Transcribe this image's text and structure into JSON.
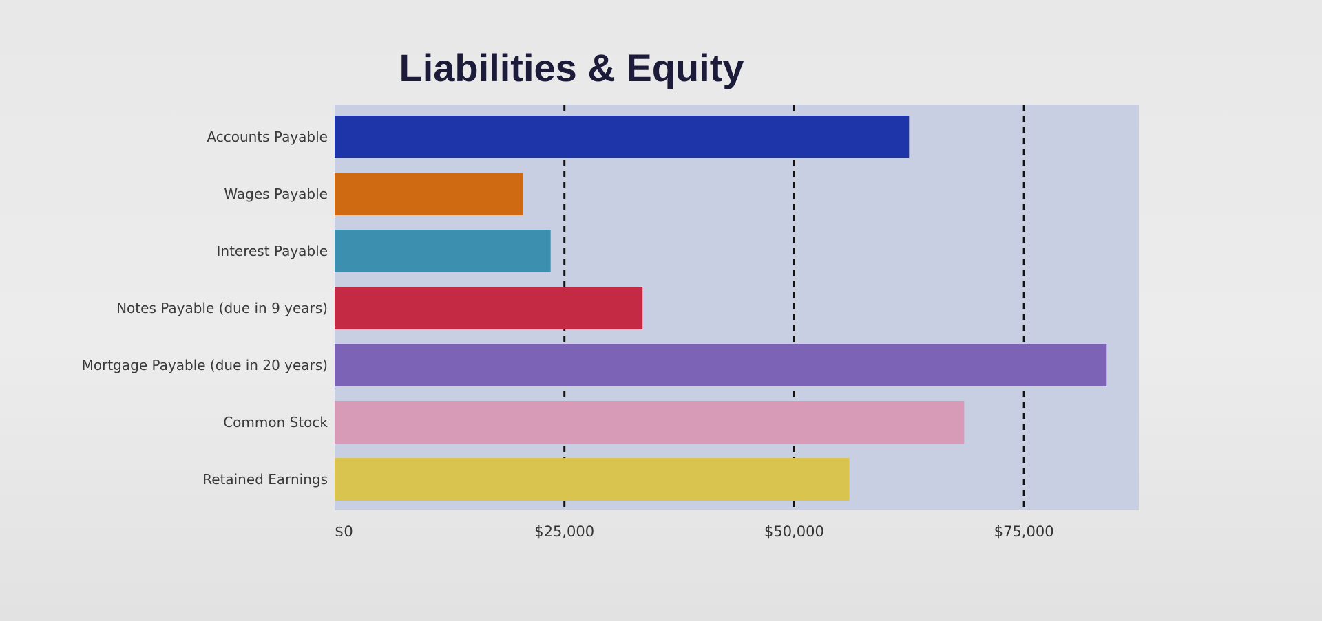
{
  "chart_data": {
    "type": "bar",
    "orientation": "horizontal",
    "title": "Liabilities & Equity",
    "categories": [
      "Accounts Payable",
      "Wages Payable",
      "Interest Payable",
      "Notes Payable (due in 9 years)",
      "Mortgage Payable (due in 20 years)",
      "Common Stock",
      "Retained Earnings"
    ],
    "values": [
      62500,
      20500,
      23500,
      33500,
      84000,
      68500,
      56000
    ],
    "colors": [
      "#1d35a8",
      "#cf6a12",
      "#3d8fb0",
      "#c52a45",
      "#7d63b5",
      "#d79bb8",
      "#d8c44e"
    ],
    "xticks": [
      0,
      25000,
      50000,
      75000
    ],
    "xtick_labels": [
      "$0",
      "$25,000",
      "$50,000",
      "$75,000"
    ],
    "xlim": [
      0,
      87500
    ],
    "grid": true,
    "grid_style": "dashed",
    "plot_background": "#c9cfe3",
    "legend": "none"
  }
}
